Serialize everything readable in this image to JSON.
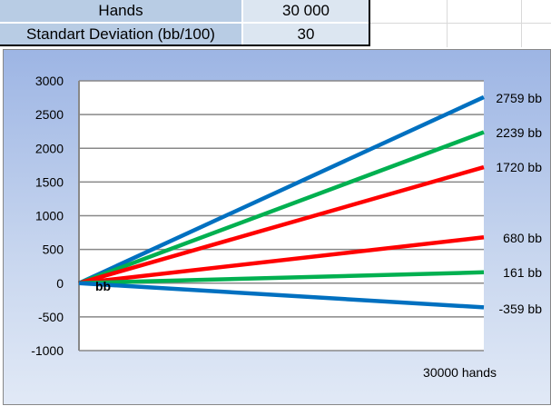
{
  "table": {
    "rows": [
      {
        "label": "Hands",
        "value": "30 000"
      },
      {
        "label": "Standart Deviation (bb/100)",
        "value": "30"
      }
    ]
  },
  "chart_data": {
    "type": "line",
    "title": "",
    "xlabel": "30000 hands",
    "ylabel": "",
    "origin_label": "bb",
    "x": [
      0,
      30000
    ],
    "ylim": [
      -1000,
      3000
    ],
    "yticks": [
      "3000",
      "2500",
      "2000",
      "1500",
      "1000",
      "500",
      "0",
      "-500",
      "-1000"
    ],
    "grid": true,
    "series": [
      {
        "values": [
          0,
          2759
        ],
        "label": "2759 bb",
        "color": "#0070c0"
      },
      {
        "values": [
          0,
          2239
        ],
        "label": "2239 bb",
        "color": "#00b050"
      },
      {
        "values": [
          0,
          1720
        ],
        "label": "1720 bb",
        "color": "#ff0000"
      },
      {
        "values": [
          0,
          680
        ],
        "label": "680 bb",
        "color": "#ff0000"
      },
      {
        "values": [
          0,
          161
        ],
        "label": "161 bb",
        "color": "#00b050"
      },
      {
        "values": [
          0,
          -359
        ],
        "label": "-359 bb",
        "color": "#0070c0"
      }
    ]
  }
}
